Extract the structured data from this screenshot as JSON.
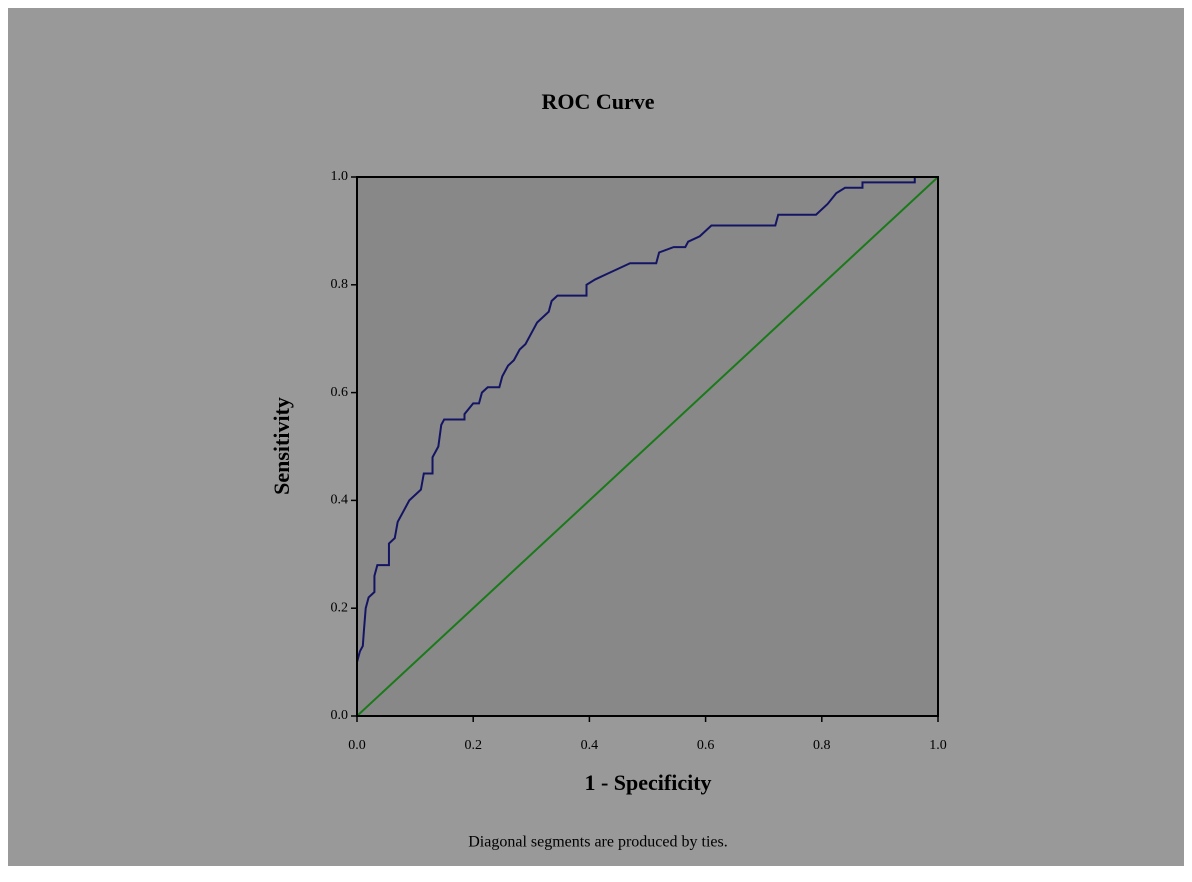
{
  "chart_data": {
    "type": "line",
    "title": "ROC Curve",
    "x_label": "1 - Specificity",
    "y_label": "Sensitivity",
    "note": "Diagonal segments are produced by ties.",
    "xlim": [
      0,
      1
    ],
    "ylim": [
      0,
      1
    ],
    "xticks": [
      {
        "value": 0,
        "label": "0.0"
      },
      0.2,
      0.4,
      0.6,
      0.8,
      {
        "value": 1,
        "label": "1.0"
      }
    ],
    "yticks": [
      {
        "value": 0,
        "label": "0.0"
      },
      0.2,
      0.4,
      0.6,
      0.8,
      {
        "value": 1,
        "label": "1.0"
      }
    ],
    "series": [
      {
        "color": "#141464",
        "x": [
          0,
          0,
          0.005,
          0.01,
          0.012,
          0.015,
          0.02,
          0.03,
          0.03,
          0.035,
          0.055,
          0.055,
          0.065,
          0.07,
          0.08,
          0.09,
          0.1,
          0.11,
          0.115,
          0.13,
          0.13,
          0.14,
          0.145,
          0.15,
          0.185,
          0.185,
          0.2,
          0.21,
          0.215,
          0.225,
          0.245,
          0.25,
          0.26,
          0.27,
          0.28,
          0.29,
          0.3,
          0.31,
          0.32,
          0.33,
          0.335,
          0.345,
          0.395,
          0.395,
          0.41,
          0.43,
          0.45,
          0.47,
          0.515,
          0.52,
          0.545,
          0.565,
          0.57,
          0.59,
          0.6,
          0.61,
          0.72,
          0.725,
          0.79,
          0.81,
          0.825,
          0.84,
          0.87,
          0.87,
          0.96,
          0.96,
          1
        ],
        "values": [
          0,
          0.1,
          0.12,
          0.13,
          0.16,
          0.2,
          0.22,
          0.23,
          0.26,
          0.28,
          0.28,
          0.32,
          0.33,
          0.36,
          0.38,
          0.4,
          0.41,
          0.42,
          0.45,
          0.45,
          0.48,
          0.5,
          0.54,
          0.55,
          0.55,
          0.56,
          0.58,
          0.58,
          0.6,
          0.61,
          0.61,
          0.63,
          0.65,
          0.66,
          0.68,
          0.69,
          0.71,
          0.73,
          0.74,
          0.75,
          0.77,
          0.78,
          0.78,
          0.8,
          0.81,
          0.82,
          0.83,
          0.84,
          0.84,
          0.86,
          0.87,
          0.87,
          0.88,
          0.89,
          0.9,
          0.91,
          0.91,
          0.93,
          0.93,
          0.95,
          0.97,
          0.98,
          0.98,
          0.99,
          0.99,
          1,
          1
        ]
      },
      {
        "color": "#1a7a1a",
        "x": [
          0,
          1
        ],
        "values": [
          0,
          1
        ]
      }
    ]
  }
}
